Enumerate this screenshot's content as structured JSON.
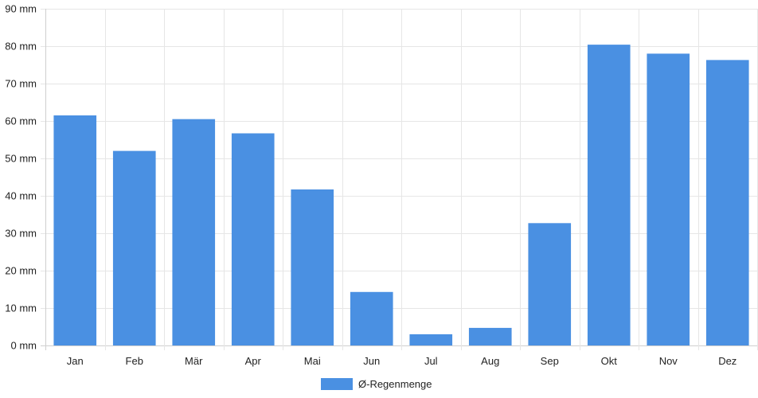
{
  "chart_data": {
    "type": "bar",
    "categories": [
      "Jan",
      "Feb",
      "Mär",
      "Apr",
      "Mai",
      "Jun",
      "Jul",
      "Aug",
      "Sep",
      "Okt",
      "Nov",
      "Dez"
    ],
    "series": [
      {
        "name": "Ø-Regenmenge",
        "values": [
          61.5,
          52.0,
          60.5,
          56.7,
          41.7,
          14.3,
          3.0,
          4.7,
          32.7,
          80.4,
          78.0,
          76.3
        ],
        "color": "#4a90e2"
      }
    ],
    "y_ticks": [
      "0 mm",
      "10 mm",
      "20 mm",
      "30 mm",
      "40 mm",
      "50 mm",
      "60 mm",
      "70 mm",
      "80 mm",
      "90 mm"
    ],
    "ylim": [
      0,
      90
    ],
    "y_unit": "mm",
    "grid": true,
    "legend": "bottom-center",
    "title": "",
    "xlabel": "",
    "ylabel": ""
  }
}
